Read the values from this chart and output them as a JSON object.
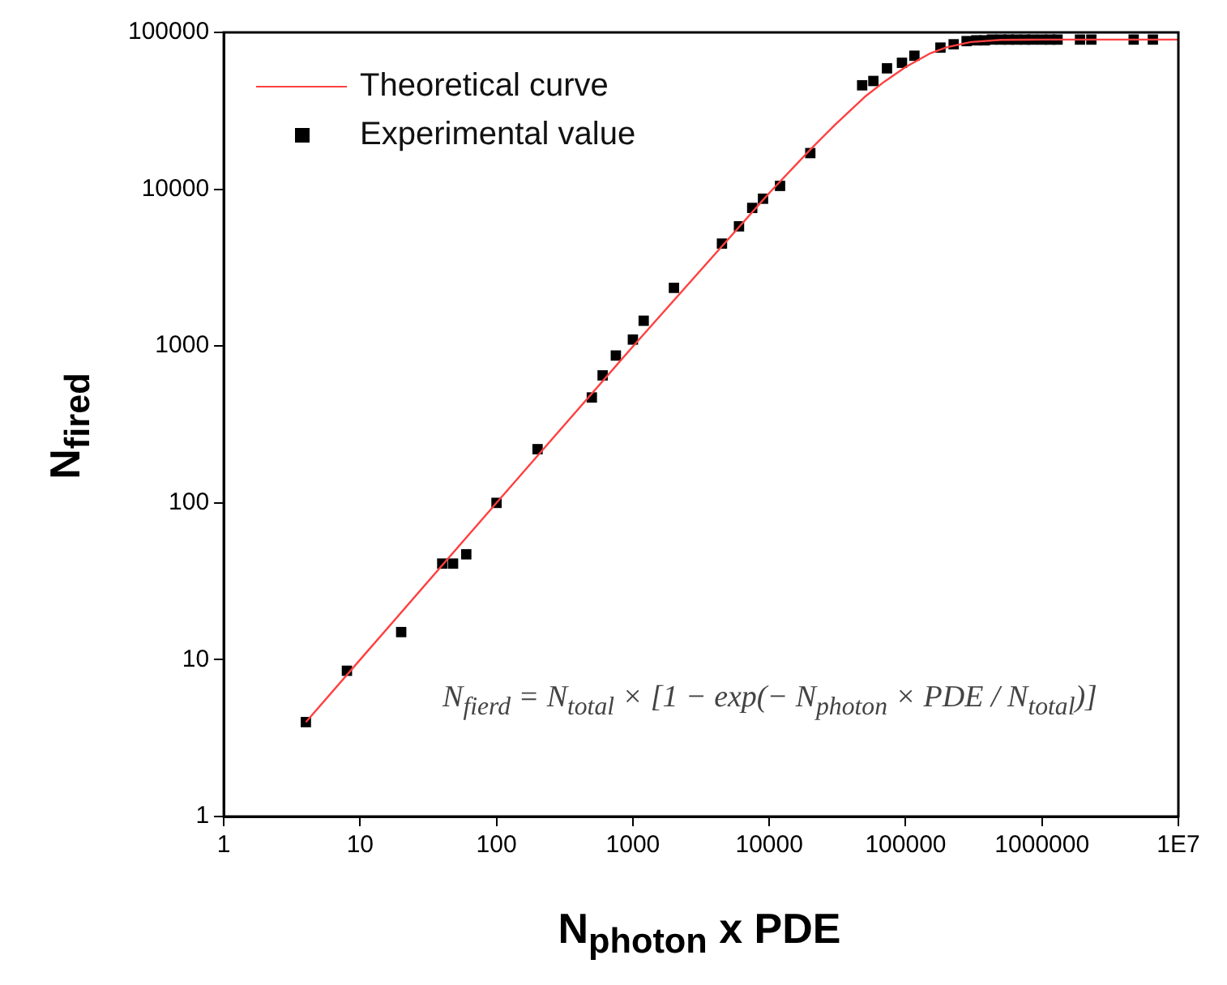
{
  "chart_data": {
    "type": "scatter",
    "xlabel": "N$_{photon}$ x PDE",
    "ylabel": "N$_{fired}$",
    "log": "xy",
    "xlim": [
      1,
      10000000
    ],
    "xticks": [
      1,
      10,
      100,
      1000,
      10000,
      100000,
      1000000,
      {
        "value": 10000000,
        "label": "1E7"
      }
    ],
    "ylim": [
      1,
      100000
    ],
    "yticks": [
      1,
      10,
      100,
      1000,
      10000,
      100000
    ],
    "grid": false,
    "legend": "top left",
    "annotations": [
      "N$_{fierd}$ = N$_{total}$ × [1 − exp(− N$_{photon}$ × PDE / N$_{total}$)]"
    ],
    "series": [
      {
        "name": "Theoretical curve",
        "type": "line",
        "color": "#ff4040",
        "marker": "none",
        "line_style": "solid",
        "x": [
          4,
          10,
          100,
          1000,
          10000,
          20000,
          30000,
          50000,
          70000,
          100000,
          150000,
          200000,
          300000,
          500000,
          1000000,
          10000000
        ],
        "values": [
          4,
          10,
          100,
          994,
          9460,
          17900,
          25500,
          38700,
          48600,
          60100,
          73200,
          80400,
          86800,
          89650,
          90000,
          90000
        ]
      },
      {
        "name": "Experimental value",
        "type": "scatter",
        "color": "#000000",
        "marker": "square",
        "x": [
          4,
          8,
          20,
          40,
          48,
          60,
          100,
          200,
          500,
          600,
          750,
          1000,
          1200,
          2000,
          4500,
          6000,
          7500,
          9000,
          12000,
          20000,
          48000,
          58000,
          73000,
          94000,
          116000,
          180000,
          225000,
          280000,
          330000,
          380000,
          430000,
          500000,
          570000,
          650000,
          750000,
          850000,
          1000000,
          1150000,
          1300000,
          1900000,
          2300000,
          4700000,
          6500000
        ],
        "values": [
          4,
          8.5,
          15,
          41,
          41,
          47,
          100,
          220,
          470,
          650,
          870,
          1100,
          1450,
          2350,
          4500,
          5800,
          7600,
          8700,
          10500,
          17000,
          46000,
          49000,
          59000,
          64000,
          71000,
          80000,
          84000,
          88000,
          89000,
          89000,
          90000,
          90000,
          90000,
          90000,
          90000,
          90000,
          90000,
          90000,
          90000,
          90000,
          90000,
          90000,
          90000
        ]
      }
    ]
  }
}
